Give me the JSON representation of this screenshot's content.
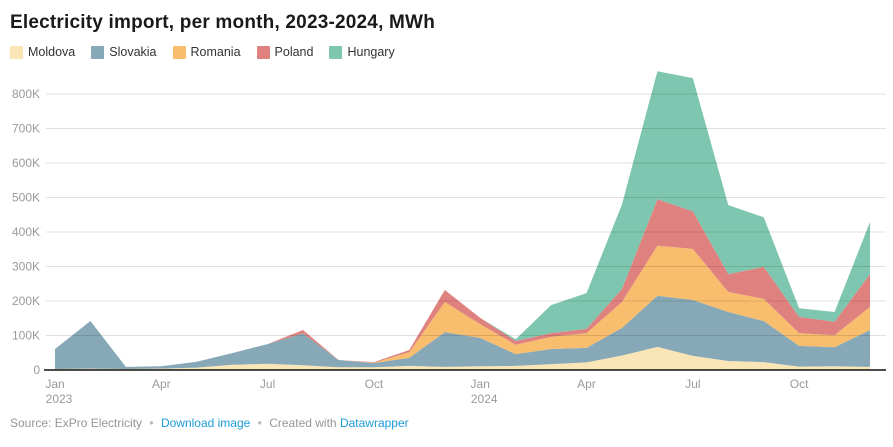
{
  "title": "Electricity import, per month, 2023-2024, MWh",
  "footer": {
    "source_text": "Source: ExPro Electricity",
    "separator": "•",
    "download_link_label": "Download image",
    "created_with_text": "Created with",
    "datawrapper_link_label": "Datawrapper"
  },
  "colors": {
    "title": "#1a1a1a",
    "axis_label": "#9a9a9a",
    "gridline": "rgba(0,0,0,0.12)",
    "baseline": "#111111",
    "link_blue": "#1d9bd7"
  },
  "chart_data": {
    "type": "area",
    "stacked": true,
    "title": "Electricity import, per month, 2023-2024, MWh",
    "unit": "MWh",
    "values_unit": "thousands of MWh",
    "ylim": [
      0,
      900
    ],
    "grid": true,
    "legend_position": "top-left",
    "x": [
      "Jan 2023",
      "Feb 2023",
      "Mar 2023",
      "Apr 2023",
      "May 2023",
      "Jun 2023",
      "Jul 2023",
      "Aug 2023",
      "Sep 2023",
      "Oct 2023",
      "Nov 2023",
      "Dec 2023",
      "Jan 2024",
      "Feb 2024",
      "Mar 2024",
      "Apr 2024",
      "May 2024",
      "Jun 2024",
      "Jul 2024",
      "Aug 2024",
      "Sep 2024",
      "Oct 2024",
      "Nov 2024",
      "Dec 2024"
    ],
    "yticks": [
      "0",
      "100K",
      "200K",
      "300K",
      "400K",
      "500K",
      "600K",
      "700K",
      "800K"
    ],
    "xticks": [
      {
        "index": 0,
        "label": "Jan",
        "year": "2023"
      },
      {
        "index": 3,
        "label": "Apr"
      },
      {
        "index": 6,
        "label": "Jul"
      },
      {
        "index": 9,
        "label": "Oct"
      },
      {
        "index": 12,
        "label": "Jan",
        "year": "2024"
      },
      {
        "index": 15,
        "label": "Apr"
      },
      {
        "index": 18,
        "label": "Jul"
      },
      {
        "index": 21,
        "label": "Oct"
      }
    ],
    "series": [
      {
        "name": "Moldova",
        "color": "#FAE5B7",
        "values": [
          3,
          4,
          3,
          4,
          7,
          15,
          18,
          14,
          8,
          8,
          12,
          9,
          11,
          12,
          17,
          22,
          42,
          67,
          41,
          26,
          23,
          10,
          11,
          9
        ]
      },
      {
        "name": "Slovakia",
        "color": "#87A8B6",
        "values": [
          58,
          138,
          6,
          7,
          17,
          34,
          57,
          92,
          21,
          12,
          23,
          101,
          82,
          34,
          44,
          42,
          80,
          148,
          162,
          142,
          119,
          60,
          55,
          107
        ]
      },
      {
        "name": "Romania",
        "color": "#F8BE6E",
        "values": [
          0,
          0,
          0,
          0,
          0,
          0,
          0,
          0,
          0,
          1,
          17,
          87,
          40,
          27,
          35,
          43,
          75,
          145,
          148,
          58,
          64,
          37,
          35,
          67
        ]
      },
      {
        "name": "Poland",
        "color": "#DF827F",
        "values": [
          0,
          0,
          0,
          0,
          0,
          0,
          0,
          10,
          0,
          2,
          6,
          35,
          18,
          11,
          11,
          12,
          38,
          135,
          109,
          52,
          93,
          47,
          39,
          95
        ]
      },
      {
        "name": "Hungary",
        "color": "#7EC6AF",
        "values": [
          0,
          0,
          0,
          0,
          0,
          0,
          0,
          0,
          0,
          0,
          0,
          0,
          0,
          5,
          81,
          104,
          245,
          371,
          386,
          200,
          144,
          25,
          28,
          151
        ]
      }
    ]
  }
}
